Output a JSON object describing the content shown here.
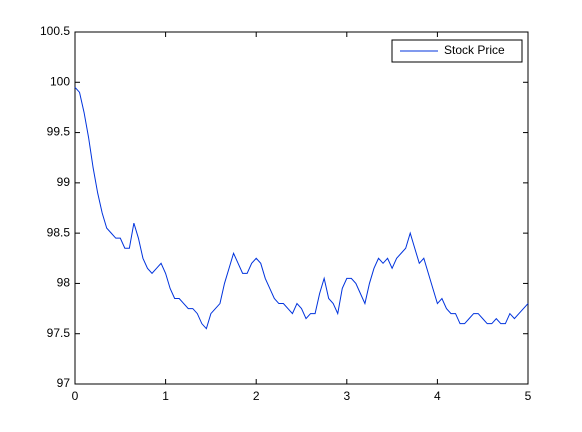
{
  "chart_data": {
    "type": "line",
    "x": [
      0,
      0.05,
      0.1,
      0.15,
      0.2,
      0.25,
      0.3,
      0.35,
      0.4,
      0.45,
      0.5,
      0.55,
      0.6,
      0.65,
      0.7,
      0.75,
      0.8,
      0.85,
      0.9,
      0.95,
      1,
      1.05,
      1.1,
      1.15,
      1.2,
      1.25,
      1.3,
      1.35,
      1.4,
      1.45,
      1.5,
      1.55,
      1.6,
      1.65,
      1.7,
      1.75,
      1.8,
      1.85,
      1.9,
      1.95,
      2,
      2.05,
      2.1,
      2.15,
      2.2,
      2.25,
      2.3,
      2.35,
      2.4,
      2.45,
      2.5,
      2.55,
      2.6,
      2.65,
      2.7,
      2.75,
      2.8,
      2.85,
      2.9,
      2.95,
      3,
      3.05,
      3.1,
      3.15,
      3.2,
      3.25,
      3.3,
      3.35,
      3.4,
      3.45,
      3.5,
      3.55,
      3.6,
      3.65,
      3.7,
      3.75,
      3.8,
      3.85,
      3.9,
      3.95,
      4,
      4.05,
      4.1,
      4.15,
      4.2,
      4.25,
      4.3,
      4.35,
      4.4,
      4.45,
      4.5,
      4.55,
      4.6,
      4.65,
      4.7,
      4.75,
      4.8,
      4.85,
      4.9,
      4.95,
      5
    ],
    "series": [
      {
        "name": "Stock Price",
        "color": "#0033dd",
        "values": [
          99.95,
          99.9,
          99.7,
          99.45,
          99.15,
          98.9,
          98.7,
          98.55,
          98.5,
          98.45,
          98.45,
          98.35,
          98.35,
          98.6,
          98.45,
          98.25,
          98.15,
          98.1,
          98.15,
          98.2,
          98.1,
          97.95,
          97.85,
          97.85,
          97.8,
          97.75,
          97.75,
          97.7,
          97.6,
          97.55,
          97.7,
          97.75,
          97.8,
          98.0,
          98.15,
          98.3,
          98.2,
          98.1,
          98.1,
          98.2,
          98.25,
          98.2,
          98.05,
          97.95,
          97.85,
          97.8,
          97.8,
          97.75,
          97.7,
          97.8,
          97.75,
          97.65,
          97.7,
          97.7,
          97.9,
          98.05,
          97.85,
          97.8,
          97.7,
          97.95,
          98.05,
          98.05,
          98.0,
          97.9,
          97.8,
          98.0,
          98.15,
          98.25,
          98.2,
          98.25,
          98.15,
          98.25,
          98.3,
          98.35,
          98.5,
          98.35,
          98.2,
          98.25,
          98.1,
          97.95,
          97.8,
          97.85,
          97.75,
          97.7,
          97.7,
          97.6,
          97.6,
          97.65,
          97.7,
          97.7,
          97.65,
          97.6,
          97.6,
          97.65,
          97.6,
          97.6,
          97.7,
          97.65,
          97.7,
          97.75,
          97.8
        ]
      }
    ],
    "xlim": [
      0,
      5
    ],
    "xticks": [
      0,
      1,
      2,
      3,
      4,
      5
    ],
    "ylim": [
      97,
      100.5
    ],
    "yticks": [
      97,
      97.5,
      98,
      98.5,
      99,
      99.5,
      100,
      100.5
    ],
    "grid": false,
    "legend": "northeast"
  }
}
